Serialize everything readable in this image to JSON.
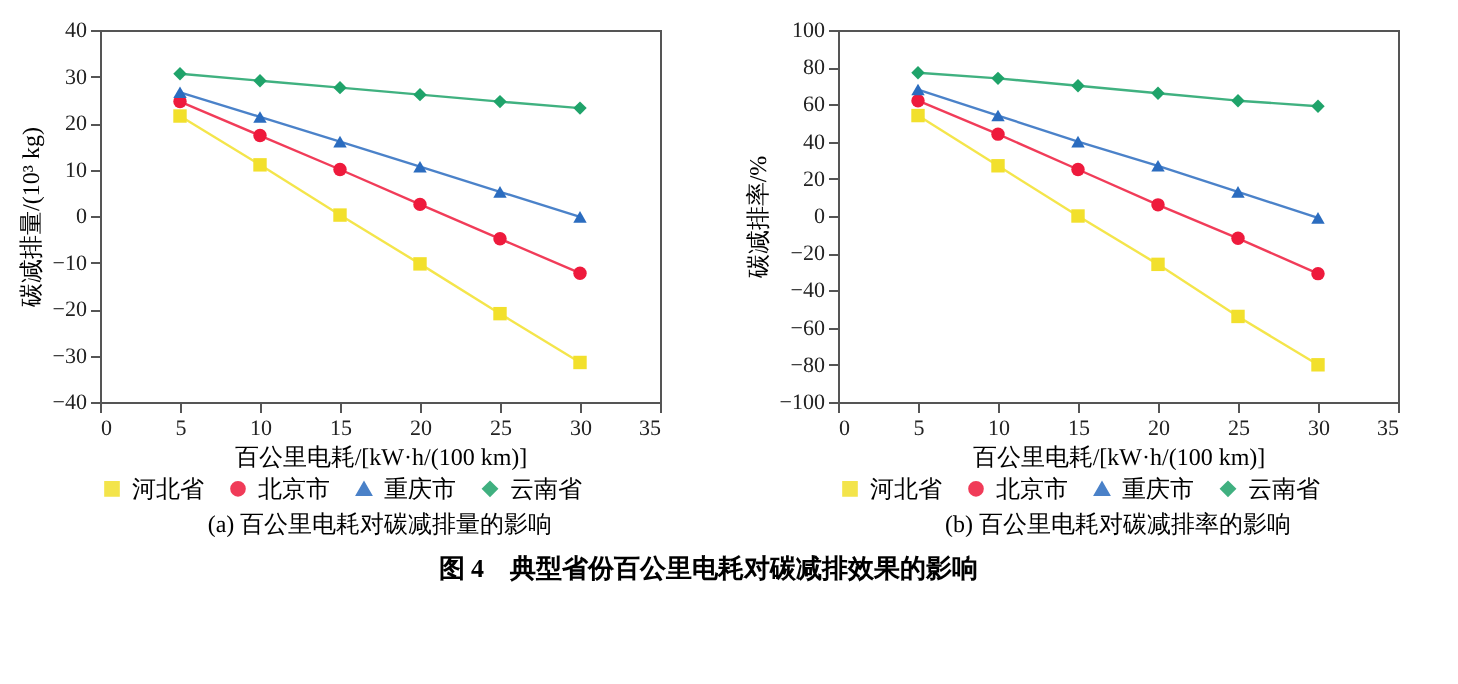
{
  "chart_data": [
    {
      "type": "line",
      "title": "(a) 百公里电耗对碳减排量的影响",
      "xlabel": "百公里电耗/[kW·h/(100 km)]",
      "ylabel": "碳减排量/(10³ kg)",
      "x": [
        5,
        10,
        15,
        20,
        25,
        30
      ],
      "xlim": [
        0,
        35
      ],
      "xticks": [
        0,
        5,
        10,
        15,
        20,
        25,
        30,
        35
      ],
      "ylim": [
        -40,
        40
      ],
      "yticks": [
        -40,
        -30,
        -20,
        -10,
        0,
        10,
        20,
        30,
        40
      ],
      "legend": "bottom",
      "annotations": [
        "图 4　典型省份百公里电耗对碳减排效果的影响"
      ],
      "series": [
        {
          "name": "河北省",
          "color": "#f2e02c",
          "marker": "square",
          "values": [
            21.5,
            11,
            0.2,
            -10.3,
            -21,
            -31.5
          ]
        },
        {
          "name": "北京市",
          "color": "#ee1a3c",
          "marker": "circle",
          "values": [
            24.6,
            17.3,
            10,
            2.5,
            -4.9,
            -12.3
          ]
        },
        {
          "name": "重庆市",
          "color": "#2b6cbf",
          "marker": "triangle",
          "values": [
            26.6,
            21.3,
            16,
            10.6,
            5.2,
            -0.2
          ]
        },
        {
          "name": "云南省",
          "color": "#1fa36a",
          "marker": "diamond",
          "values": [
            30.6,
            29.1,
            27.6,
            26.1,
            24.6,
            23.2
          ]
        }
      ]
    },
    {
      "type": "line",
      "title": "(b) 百公里电耗对碳减排率的影响",
      "xlabel": "百公里电耗/[kW·h/(100 km)]",
      "ylabel": "碳减排率/%",
      "x": [
        5,
        10,
        15,
        20,
        25,
        30
      ],
      "xlim": [
        0,
        35
      ],
      "xticks": [
        0,
        5,
        10,
        15,
        20,
        25,
        30,
        35
      ],
      "ylim": [
        -100,
        100
      ],
      "legend": "bottom",
      "yticks": [
        -100,
        -80,
        -60,
        -40,
        -20,
        0,
        20,
        40,
        60,
        80,
        100
      ],
      "series": [
        {
          "name": "河北省",
          "color": "#f2e02c",
          "marker": "square",
          "values": [
            54,
            27,
            0,
            -26,
            -54,
            -80
          ]
        },
        {
          "name": "北京市",
          "color": "#ee1a3c",
          "marker": "circle",
          "values": [
            62,
            44,
            25,
            6,
            -12,
            -31
          ]
        },
        {
          "name": "重庆市",
          "color": "#2b6cbf",
          "marker": "triangle",
          "values": [
            68,
            54,
            40,
            27,
            13,
            -1
          ]
        },
        {
          "name": "云南省",
          "color": "#1fa36a",
          "marker": "diamond",
          "values": [
            77,
            74,
            70,
            66,
            62,
            59
          ]
        }
      ]
    }
  ]
}
